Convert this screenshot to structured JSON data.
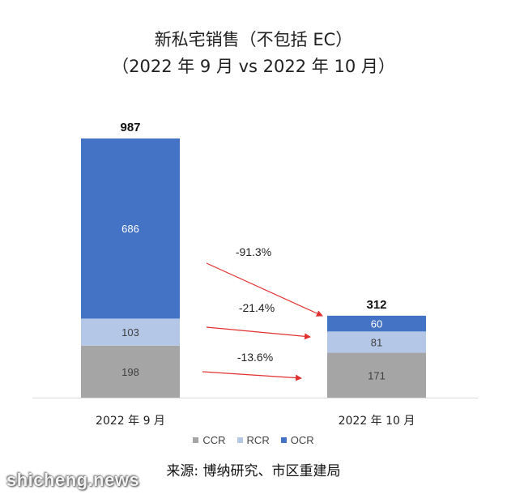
{
  "chart_data": {
    "type": "bar",
    "stacked": true,
    "title": "新私宅销售（不包括 EC）",
    "subtitle": "（2022 年 9 月 vs 2022 年 10 月）",
    "categories": [
      "2022 年 9 月",
      "2022 年 10 月"
    ],
    "series": [
      {
        "name": "CCR",
        "values": [
          198,
          171
        ],
        "color": "#a5a5a5"
      },
      {
        "name": "RCR",
        "values": [
          103,
          81
        ],
        "color": "#b4c7e7"
      },
      {
        "name": "OCR",
        "values": [
          686,
          60
        ],
        "color": "#4472c4"
      }
    ],
    "totals": [
      987,
      312
    ],
    "ylim": [
      0,
      987
    ],
    "grid": false,
    "legend_position": "bottom",
    "annotations": [
      {
        "text": "-91.3%",
        "series": "OCR"
      },
      {
        "text": "-21.4%",
        "series": "RCR"
      },
      {
        "text": "-13.6%",
        "series": "CCR"
      }
    ],
    "arrow_color": "#e03030"
  },
  "source": "来源: 博纳研究、市区重建局",
  "watermark": "shicheng.news"
}
